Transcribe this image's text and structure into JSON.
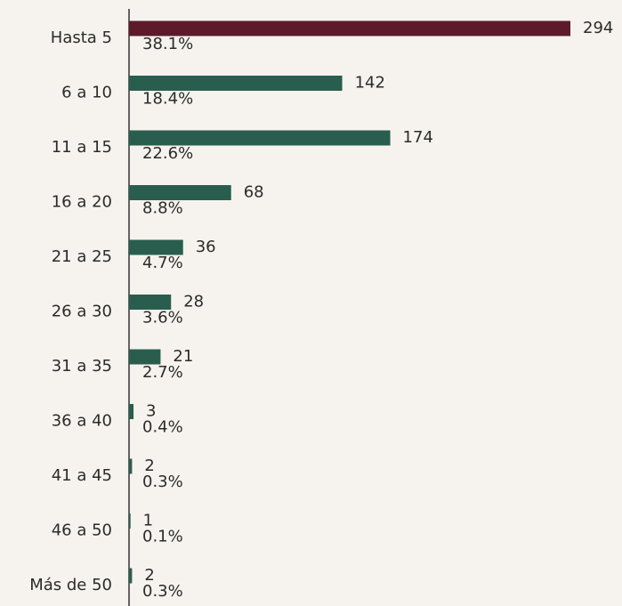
{
  "chart_data": {
    "type": "bar",
    "orientation": "horizontal",
    "categories": [
      "Hasta 5",
      "6 a 10",
      "11 a 15",
      "16 a 20",
      "21 a 25",
      "26 a 30",
      "31 a 35",
      "36 a 40",
      "41 a 45",
      "46 a 50",
      "Más de 50"
    ],
    "values": [
      294,
      142,
      174,
      68,
      36,
      28,
      21,
      3,
      2,
      1,
      2
    ],
    "percentages": {
      "values": [
        38.1,
        18.4,
        22.6,
        8.8,
        4.7,
        3.6,
        2.7,
        0.4,
        0.3,
        0.1,
        0.3
      ],
      "value_labels": [
        "38.1%",
        "18.4%",
        "22.6%",
        "8.8%",
        "4.7%",
        "3.6%",
        "2.7%",
        "0.4%",
        "0.3%",
        "0.1%",
        "0.3%"
      ]
    },
    "colors": [
      "#5c1a2b",
      "#295e4e",
      "#295e4e",
      "#295e4e",
      "#295e4e",
      "#295e4e",
      "#295e4e",
      "#295e4e",
      "#295e4e",
      "#295e4e",
      "#295e4e"
    ],
    "xlim": [
      0,
      294
    ]
  }
}
